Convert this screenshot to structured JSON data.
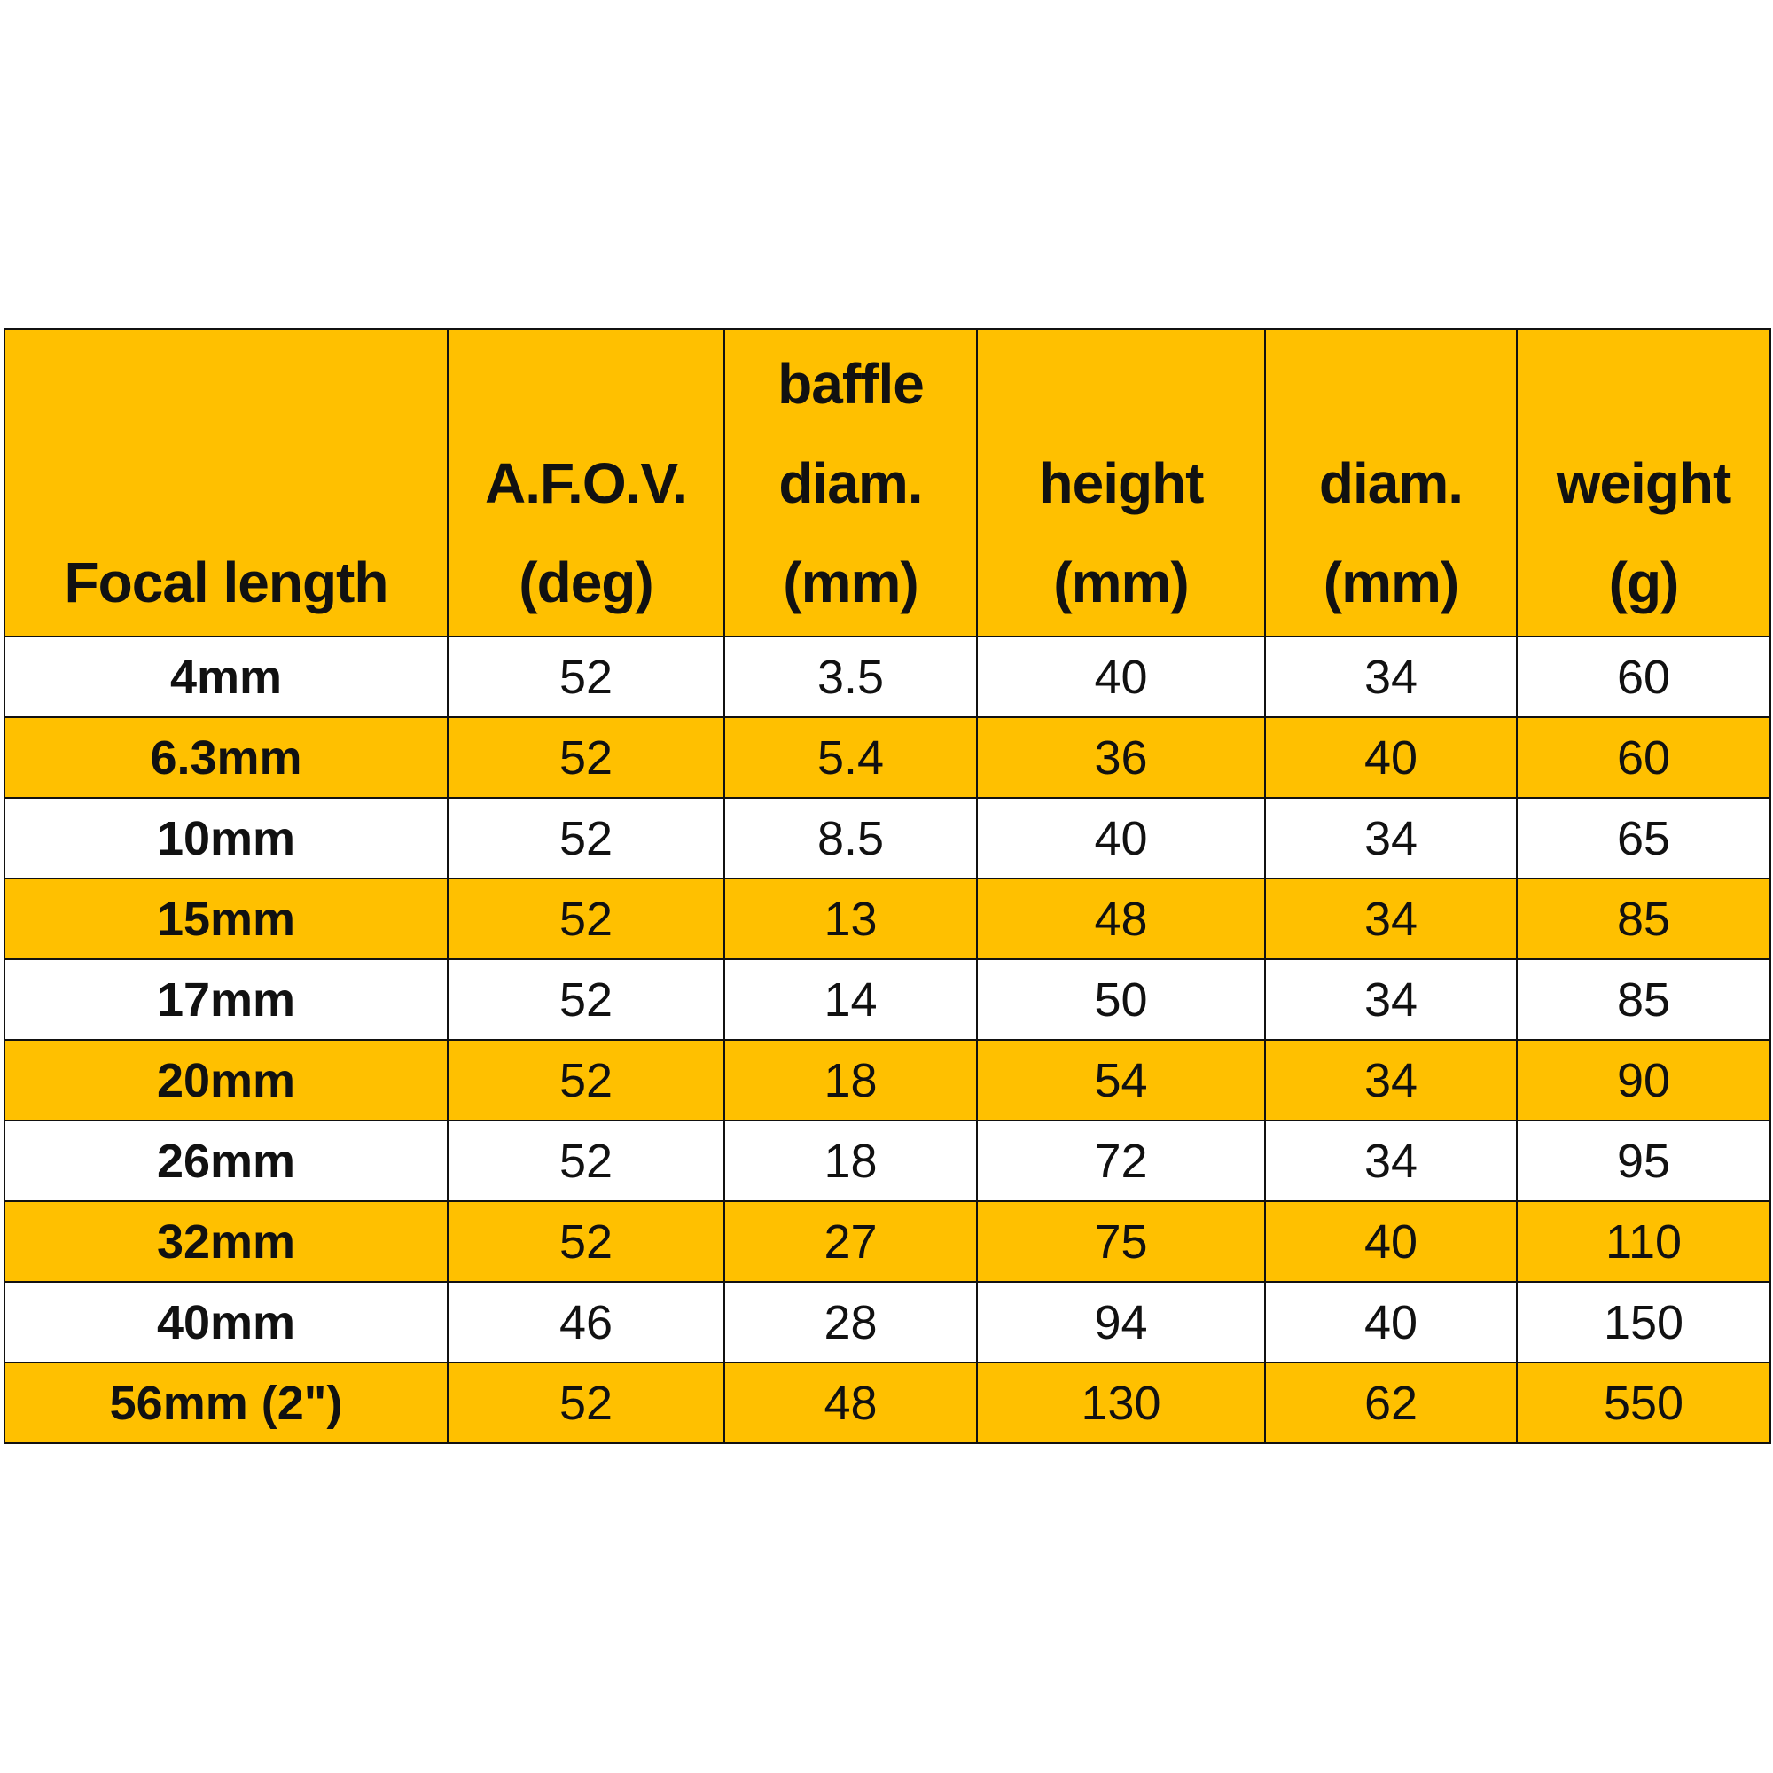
{
  "table": {
    "header_color": "#FFC000",
    "stripe_color": "#FFC000",
    "columns": [
      [
        "Focal length"
      ],
      [
        "A.F.O.V.",
        "(deg)"
      ],
      [
        "baffle",
        "diam.",
        "(mm)"
      ],
      [
        "height",
        "(mm)"
      ],
      [
        "diam.",
        "(mm)"
      ],
      [
        "weight",
        "(g)"
      ]
    ],
    "rows": [
      [
        "4mm",
        "52",
        "3.5",
        "40",
        "34",
        "60"
      ],
      [
        "6.3mm",
        "52",
        "5.4",
        "36",
        "40",
        "60"
      ],
      [
        "10mm",
        "52",
        "8.5",
        "40",
        "34",
        "65"
      ],
      [
        "15mm",
        "52",
        "13",
        "48",
        "34",
        "85"
      ],
      [
        "17mm",
        "52",
        "14",
        "50",
        "34",
        "85"
      ],
      [
        "20mm",
        "52",
        "18",
        "54",
        "34",
        "90"
      ],
      [
        "26mm",
        "52",
        "18",
        "72",
        "34",
        "95"
      ],
      [
        "32mm",
        "52",
        "27",
        "75",
        "40",
        "110"
      ],
      [
        "40mm",
        "46",
        "28",
        "94",
        "40",
        "150"
      ],
      [
        "56mm (2\")",
        "52",
        "48",
        "130",
        "62",
        "550"
      ]
    ]
  }
}
